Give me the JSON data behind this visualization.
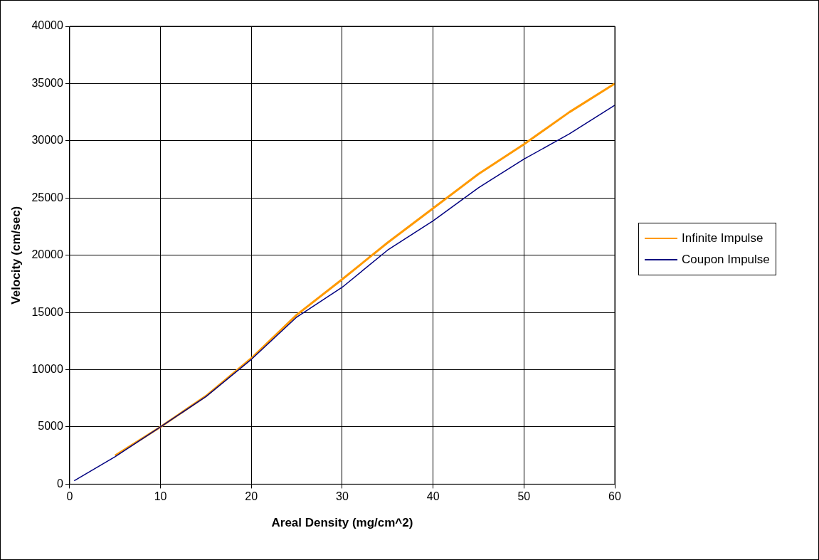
{
  "chart_data": {
    "type": "line",
    "xlabel": "Areal Density (mg/cm^2)",
    "ylabel": "Velocity (cm/sec)",
    "x": [
      0.5,
      5,
      10,
      15,
      20,
      25,
      30,
      35,
      40,
      45,
      50,
      55,
      60
    ],
    "series": [
      {
        "name": "Infinite Impulse",
        "color": "#ff9900",
        "values": [
          null,
          2500,
          5000,
          7700,
          11000,
          14800,
          17900,
          21100,
          24100,
          27100,
          29700,
          32500,
          35000
        ]
      },
      {
        "name": "Coupon Impulse",
        "color": "#000080",
        "values": [
          300,
          2400,
          5000,
          7650,
          10900,
          14600,
          17200,
          20450,
          23000,
          25900,
          28400,
          30600,
          33100
        ]
      }
    ],
    "xlim": [
      0,
      60
    ],
    "xticks": [
      0,
      10,
      20,
      30,
      40,
      50,
      60
    ],
    "ylim": [
      0,
      40000
    ],
    "yticks": [
      0,
      5000,
      10000,
      15000,
      20000,
      25000,
      30000,
      35000,
      40000
    ],
    "grid": true,
    "legend": "right",
    "marker": "none",
    "line_style": "solid"
  }
}
